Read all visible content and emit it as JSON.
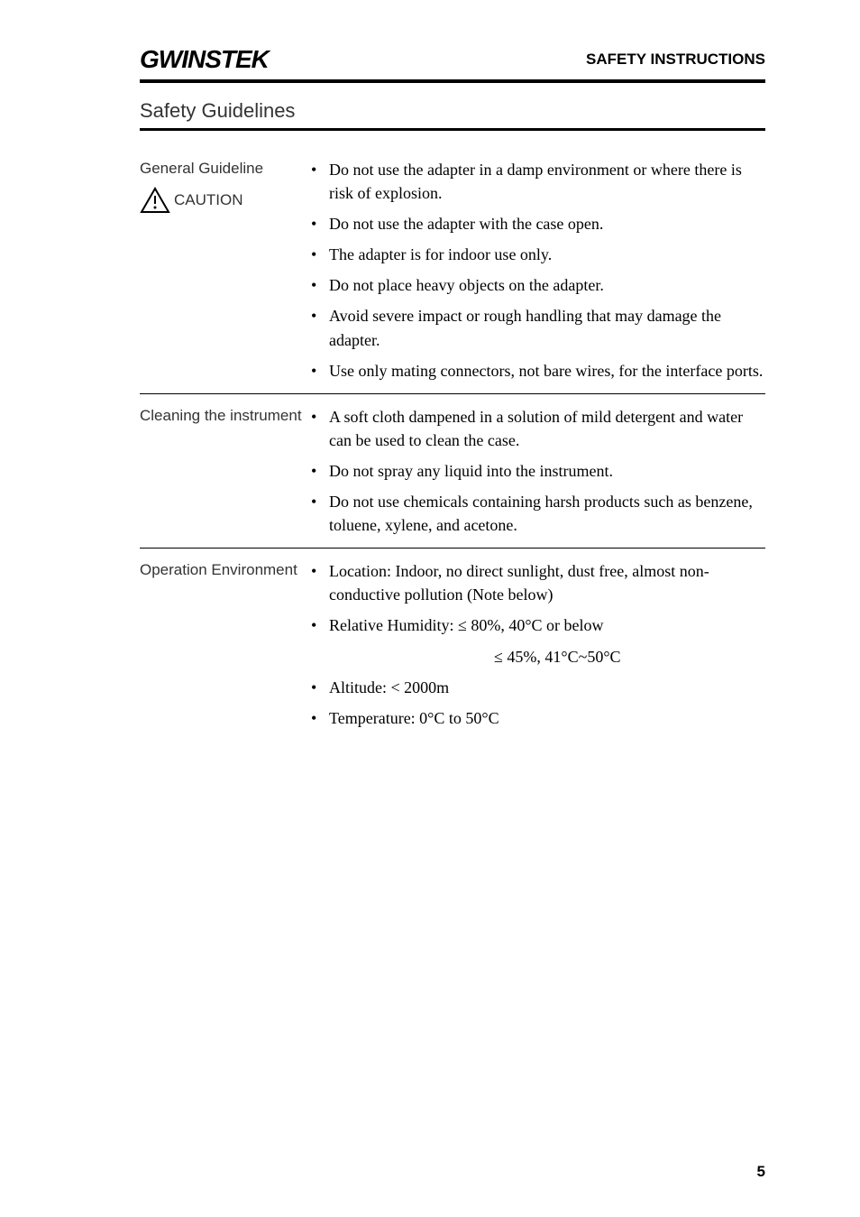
{
  "header": {
    "logo": "GWINSTEK",
    "rightText": "SAFETY INSTRUCTIONS"
  },
  "sectionTitle": "Safety Guidelines",
  "rows": [
    {
      "label": "General Guideline",
      "hasCaution": true,
      "cautionLabel": "CAUTION",
      "items": [
        "Do not use the adapter in a damp environment or where there is risk of explosion.",
        "Do not use the adapter with the case open.",
        "The adapter is for indoor use only.",
        "Do not place heavy objects on the adapter.",
        "Avoid severe impact or rough handling that may damage the adapter.",
        "Use only mating connectors, not bare wires, for the interface ports."
      ]
    },
    {
      "label": "Cleaning the instrument",
      "hasCaution": false,
      "items": [
        "A soft cloth dampened in a solution of mild detergent and water can be used to clean the case.",
        "Do not spray any liquid into the instrument.",
        "Do not use chemicals containing harsh products such as benzene, toluene, xylene, and acetone."
      ]
    },
    {
      "label": "Operation Environment",
      "hasCaution": false,
      "items": [
        "Location: Indoor, no direct sunlight, dust free, almost non-conductive pollution (Note below)",
        "Relative Humidity: ≤ 80%, 40°C or below",
        "INDENT:≤ 45%, 41°C~50°C",
        "Altitude: < 2000m",
        "Temperature: 0°C to 50°C"
      ]
    }
  ],
  "pageNumber": "5",
  "style": {
    "pageWidth": 954,
    "pageHeight": 1349,
    "background": "#ffffff",
    "bodyFont": "Georgia, 'Times New Roman', serif",
    "headingFont": "Arial, sans-serif",
    "borderColor": "#000000",
    "textColor": "#000000",
    "labelColor": "#333333"
  }
}
